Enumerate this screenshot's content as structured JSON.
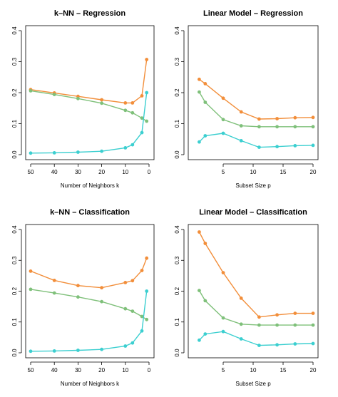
{
  "colors": {
    "orange": "#F28E3A",
    "green": "#7FC07A",
    "cyan": "#3CCFD0"
  },
  "chart_data": [
    {
      "type": "line",
      "title": "k–NN – Regression",
      "xlabel": "Number of Neighbors k",
      "ylabel": "",
      "xlim": [
        50,
        0
      ],
      "ylim": [
        0,
        0.4
      ],
      "x_reversed": true,
      "xticks": [
        50,
        40,
        30,
        20,
        10,
        0
      ],
      "yticks": [
        0.0,
        0.1,
        0.2,
        0.3,
        0.4
      ],
      "ytick_labels": [
        "0.0",
        "0.1",
        "0.2",
        "0.3",
        "0.4"
      ],
      "grid": false,
      "legend": "none",
      "series": [
        {
          "color": "#F28E3A",
          "x": [
            50,
            40,
            30,
            20,
            10,
            7,
            3,
            1
          ],
          "y": [
            0.21,
            0.199,
            0.188,
            0.177,
            0.167,
            0.167,
            0.19,
            0.307
          ]
        },
        {
          "color": "#7FC07A",
          "x": [
            50,
            40,
            30,
            20,
            10,
            7,
            3,
            1
          ],
          "y": [
            0.206,
            0.194,
            0.181,
            0.166,
            0.143,
            0.135,
            0.118,
            0.108
          ]
        },
        {
          "color": "#3CCFD0",
          "x": [
            50,
            40,
            30,
            20,
            10,
            7,
            3,
            1
          ],
          "y": [
            0.005,
            0.006,
            0.008,
            0.011,
            0.022,
            0.032,
            0.071,
            0.2
          ]
        }
      ]
    },
    {
      "type": "line",
      "title": "Linear Model – Regression",
      "xlabel": "Subset Size p",
      "ylabel": "",
      "xlim": [
        0,
        20
      ],
      "ylim": [
        0,
        0.4
      ],
      "x_reversed": false,
      "xticks": [
        5,
        10,
        15,
        20
      ],
      "yticks": [
        0.0,
        0.1,
        0.2,
        0.3,
        0.4
      ],
      "ytick_labels": [
        "0.0",
        "0.1",
        "0.2",
        "0.3",
        "0.4"
      ],
      "grid": false,
      "legend": "none",
      "series": [
        {
          "color": "#F28E3A",
          "x": [
            1,
            2,
            5,
            8,
            11,
            14,
            17,
            20
          ],
          "y": [
            0.243,
            0.229,
            0.182,
            0.138,
            0.115,
            0.116,
            0.119,
            0.12
          ]
        },
        {
          "color": "#7FC07A",
          "x": [
            1,
            2,
            5,
            8,
            11,
            14,
            17,
            20
          ],
          "y": [
            0.202,
            0.169,
            0.113,
            0.093,
            0.09,
            0.09,
            0.09,
            0.09
          ]
        },
        {
          "color": "#3CCFD0",
          "x": [
            1,
            2,
            5,
            8,
            11,
            14,
            17,
            20
          ],
          "y": [
            0.041,
            0.061,
            0.069,
            0.045,
            0.024,
            0.026,
            0.029,
            0.03
          ]
        }
      ]
    },
    {
      "type": "line",
      "title": "k–NN – Classification",
      "xlabel": "Number of Neighbors k",
      "ylabel": "",
      "xlim": [
        50,
        0
      ],
      "ylim": [
        0,
        0.4
      ],
      "x_reversed": true,
      "xticks": [
        50,
        40,
        30,
        20,
        10,
        0
      ],
      "yticks": [
        0.0,
        0.1,
        0.2,
        0.3,
        0.4
      ],
      "ytick_labels": [
        "0.0",
        "0.1",
        "0.2",
        "0.3",
        "0.4"
      ],
      "grid": false,
      "legend": "none",
      "series": [
        {
          "color": "#F28E3A",
          "x": [
            50,
            40,
            30,
            20,
            10,
            7,
            3,
            1
          ],
          "y": [
            0.265,
            0.235,
            0.218,
            0.211,
            0.228,
            0.234,
            0.267,
            0.307
          ]
        },
        {
          "color": "#7FC07A",
          "x": [
            50,
            40,
            30,
            20,
            10,
            7,
            3,
            1
          ],
          "y": [
            0.206,
            0.194,
            0.181,
            0.166,
            0.143,
            0.135,
            0.118,
            0.108
          ]
        },
        {
          "color": "#3CCFD0",
          "x": [
            50,
            40,
            30,
            20,
            10,
            7,
            3,
            1
          ],
          "y": [
            0.005,
            0.006,
            0.008,
            0.011,
            0.022,
            0.032,
            0.071,
            0.2
          ]
        }
      ]
    },
    {
      "type": "line",
      "title": "Linear Model – Classification",
      "xlabel": "Subset Size p",
      "ylabel": "",
      "xlim": [
        0,
        20
      ],
      "ylim": [
        0,
        0.4
      ],
      "x_reversed": false,
      "xticks": [
        5,
        10,
        15,
        20
      ],
      "yticks": [
        0.0,
        0.1,
        0.2,
        0.3,
        0.4
      ],
      "ytick_labels": [
        "0.0",
        "0.1",
        "0.2",
        "0.3",
        "0.4"
      ],
      "grid": false,
      "legend": "none",
      "series": [
        {
          "color": "#F28E3A",
          "x": [
            1,
            2,
            5,
            8,
            11,
            14,
            17,
            20
          ],
          "y": [
            0.392,
            0.355,
            0.26,
            0.177,
            0.116,
            0.123,
            0.128,
            0.128
          ]
        },
        {
          "color": "#7FC07A",
          "x": [
            1,
            2,
            5,
            8,
            11,
            14,
            17,
            20
          ],
          "y": [
            0.202,
            0.169,
            0.113,
            0.093,
            0.09,
            0.09,
            0.09,
            0.09
          ]
        },
        {
          "color": "#3CCFD0",
          "x": [
            1,
            2,
            5,
            8,
            11,
            14,
            17,
            20
          ],
          "y": [
            0.041,
            0.061,
            0.069,
            0.045,
            0.024,
            0.026,
            0.029,
            0.03
          ]
        }
      ]
    }
  ]
}
